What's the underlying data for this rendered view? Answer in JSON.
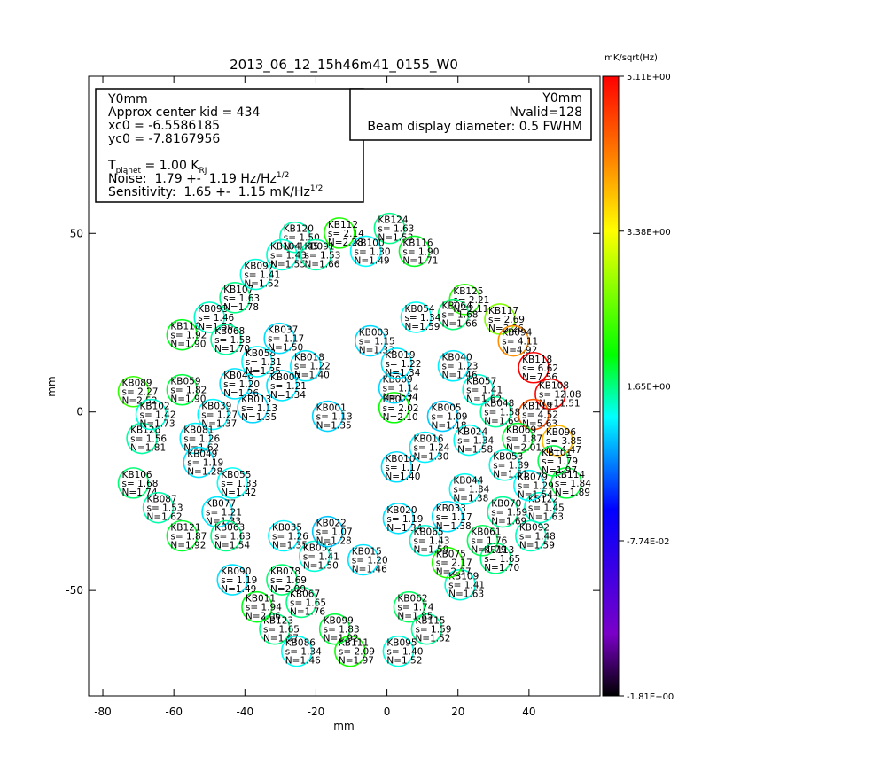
{
  "chart_data": {
    "type": "scatter",
    "title": "2013_06_12_15h46m41_0155_W0",
    "xlabel": "mm",
    "ylabel": "mm",
    "xlim": [
      -84,
      60
    ],
    "ylim": [
      -79.5,
      94
    ],
    "xticks": [
      -80,
      -60,
      -40,
      -20,
      0,
      20,
      40
    ],
    "yticks": [
      -50,
      0,
      50
    ],
    "colorbar_title": "mK/sqrt(Hz)",
    "clim": [
      -1.81,
      5.11
    ],
    "colorbar_ticks": [
      {
        "value": 5.11,
        "label": "5.11E+00"
      },
      {
        "value": 3.38,
        "label": "3.38E+00"
      },
      {
        "value": 1.65,
        "label": "1.65E+00"
      },
      {
        "value": -0.0774,
        "label": "-7.74E-02"
      },
      {
        "value": -1.81,
        "label": "-1.81E+00"
      }
    ],
    "info_left": [
      "Y0mm",
      "Approx center kid = 434",
      "xc0 = -6.5586185",
      "yc0 = -7.8167956"
    ],
    "t_planet": [
      "T",
      "planet",
      " = 1.00 K",
      "RJ"
    ],
    "noise": [
      "Noise:  1.79 +-  1.19 Hz/Hz",
      "1/2"
    ],
    "sensitivity": [
      "Sensitivity:  1.65 +-  1.15 mK/Hz",
      "1/2"
    ],
    "info_right": [
      "Y0mm",
      "Nvalid=128",
      "Beam display diameter: 0.5 FWHM"
    ],
    "labels": [
      "KB120",
      "KB112",
      "KB124",
      "KB116",
      "KB100",
      "KB104",
      "KB091",
      "KB125",
      "KB117",
      "KB094",
      "KB118",
      "KB108",
      "KB119",
      "KB096",
      "KB089",
      "KB059",
      "KB110",
      "KB093",
      "KB107",
      "KB097",
      "KB106",
      "KB126",
      "KB121",
      "KB087",
      "KB123",
      "KB111",
      "KB099",
      "KB115",
      "KB095",
      "KB086",
      "KB109",
      "KB113",
      "KB114",
      "KB101",
      "KB122",
      "KB092",
      "KB075",
      "KB062",
      "KB011",
      "KB067",
      "KB078",
      "KB090",
      "KB010",
      "KB027",
      "KB005",
      "KB048",
      "KB057",
      "KB069",
      "KB003",
      "KB064",
      "KB054",
      "KB016",
      "KB024",
      "KB001",
      "KB009",
      "KB013",
      "KB039",
      "KB102",
      "KB081",
      "KB049",
      "KB055",
      "KB077",
      "KB063",
      "KB035",
      "KB052",
      "KB015",
      "KB022",
      "KB020",
      "KB033",
      "KB065",
      "KB061",
      "KB044",
      "KB079",
      "KB070",
      "KB053",
      "KB040",
      "KB019",
      "KB018",
      "KB007",
      "KB046",
      "KB058",
      "KB068",
      "KB037"
    ],
    "x": [
      -25.9,
      -13.4,
      0.7,
      7.7,
      -6.0,
      -29.6,
      -20.0,
      21.9,
      31.8,
      35.6,
      41.3,
      46.0,
      41.3,
      48.0,
      -71.4,
      -57.7,
      -57.7,
      -50.0,
      -42.8,
      -37.0,
      -71.4,
      -69.0,
      -57.7,
      -64.4,
      -31.6,
      -10.4,
      -14.7,
      11.2,
      3.2,
      -25.4,
      20.6,
      30.6,
      50.5,
      46.8,
      43.0,
      40.5,
      17.0,
      6.2,
      -36.6,
      -24.1,
      -29.6,
      -43.5,
      2.7,
      2.0,
      15.7,
      30.6,
      25.6,
      36.8,
      -4.7,
      18.7,
      8.2,
      10.7,
      23.1,
      -16.7,
      2.0,
      -37.8,
      -49.0,
      -66.4,
      -54.0,
      -53.0,
      -43.5,
      -47.8,
      -45.3,
      -29.1,
      -20.4,
      -6.7,
      -16.7,
      3.2,
      17.0,
      10.7,
      26.9,
      21.9,
      40.0,
      32.6,
      33.1,
      18.7,
      2.7,
      -22.9,
      -29.6,
      -42.8,
      -36.6,
      -45.3,
      -30.3
    ],
    "values": [
      48.9,
      50.1,
      51.4,
      45.0,
      45.0,
      44.0,
      44.0,
      31.5,
      26.0,
      19.9,
      12.4,
      5.0,
      -0.7,
      -8.0,
      5.7,
      6.2,
      21.6,
      26.5,
      32.0,
      38.5,
      -19.9,
      -7.4,
      -34.7,
      -26.8,
      -60.8,
      -67.0,
      -60.8,
      -60.8,
      -67.0,
      -67.0,
      -48.4,
      -41.0,
      -19.9,
      -13.7,
      -26.8,
      -34.7,
      -42.2,
      -54.6,
      -54.6,
      -53.3,
      -47.0,
      -47.0,
      -15.4,
      1.2,
      -1.2,
      0.0,
      6.2,
      -7.4,
      19.9,
      27.3,
      26.5,
      -9.9,
      -7.9,
      -1.2,
      6.7,
      1.2,
      -0.7,
      -0.7,
      -7.4,
      -14.1,
      -19.9,
      -28.0,
      -34.7,
      -34.7,
      -40.4,
      -41.4,
      -33.5,
      -29.8,
      -29.3,
      -36.0,
      -36.0,
      -21.6,
      -20.6,
      -28.0,
      -14.9,
      12.9,
      13.6,
      12.9,
      7.4,
      7.9,
      14.1,
      20.3,
      20.6
    ],
    "s": [
      1.5,
      2.14,
      1.63,
      1.9,
      1.3,
      1.43,
      1.53,
      2.21,
      2.69,
      4.11,
      6.62,
      12.08,
      4.52,
      3.85,
      2.27,
      1.82,
      1.92,
      1.46,
      1.63,
      1.41,
      1.68,
      1.56,
      1.87,
      1.53,
      1.65,
      2.09,
      1.83,
      1.59,
      1.4,
      1.34,
      1.41,
      1.65,
      1.84,
      1.79,
      1.45,
      1.48,
      2.17,
      1.74,
      1.94,
      1.65,
      1.69,
      1.19,
      1.17,
      2.02,
      1.09,
      1.58,
      1.41,
      1.87,
      1.15,
      1.68,
      1.34,
      1.24,
      1.34,
      1.13,
      1.14,
      1.13,
      1.27,
      1.42,
      1.26,
      1.19,
      1.33,
      1.21,
      1.63,
      1.26,
      1.41,
      1.2,
      1.07,
      1.19,
      1.17,
      1.43,
      1.76,
      1.34,
      1.29,
      1.59,
      1.39,
      1.23,
      1.22,
      1.22,
      1.21,
      1.2,
      1.31,
      1.58,
      1.17
    ],
    "s_labels": [
      "s= 1.50",
      "s= 2.14",
      "s= 1.63",
      "s= 1.90",
      "s= 1.30",
      "s= 1.43",
      "s= 1.53",
      "s= 2.21",
      "s= 2.69",
      "s= 4.11",
      "s= 6.62",
      "s= 12.08",
      "s= 4.52",
      "s= 3.85",
      "s= 2.27",
      "s= 1.82",
      "s= 1.92",
      "s= 1.46",
      "s= 1.63",
      "s= 1.41",
      "s= 1.68",
      "s= 1.56",
      "s= 1.87",
      "s= 1.53",
      "s= 1.65",
      "s= 2.09",
      "s= 1.83",
      "s= 1.59",
      "s= 1.40",
      "s= 1.34",
      "s= 1.41",
      "s= 1.65",
      "s= 1.84",
      "s= 1.79",
      "s= 1.45",
      "s= 1.48",
      "s= 2.17",
      "s= 1.74",
      "s= 1.94",
      "s= 1.65",
      "s= 1.69",
      "s= 1.19",
      "s= 1.17",
      "s= 2.02",
      "s= 1.09",
      "s= 1.58",
      "s= 1.41",
      "s= 1.87",
      "s= 1.15",
      "s= 1.68",
      "s= 1.34",
      "s= 1.24",
      "s= 1.34",
      "s= 1.13",
      "s= 1.14",
      "s= 1.13",
      "s= 1.27",
      "s= 1.42",
      "s= 1.26",
      "s= 1.19",
      "s= 1.33",
      "s= 1.21",
      "s= 1.63",
      "s= 1.26",
      "s= 1.41",
      "s= 1.20",
      "s= 1.07",
      "s= 1.19",
      "s= 1.17",
      "s= 1.43",
      "s= 1.76",
      "s= 1.34",
      "s= 1.29",
      "s= 1.59",
      "s= 1.39",
      "s= 1.23",
      "s= 1.22",
      "s= 1.22",
      "s= 1.21",
      "s= 1.20",
      "s= 1.31",
      "s= 1.58",
      "s= 1.17"
    ],
    "n_labels": [
      "N=1.45",
      "N=2.28",
      "N=1.53",
      "N=1.71",
      "N=1.49",
      "N=1.55",
      "N=1.66",
      "N=2.11",
      "N=3.26",
      "N=4.92",
      "N=7.56",
      "N=11.51",
      "N=5.63",
      "N=4.47",
      "N=2.52",
      "N=1.90",
      "N=1.90",
      "N=1.50",
      "N=1.78",
      "N=1.52",
      "N=1.74",
      "N=1.81",
      "N=1.92",
      "N=1.62",
      "N=1.67",
      "N=1.97",
      "N=1.92",
      "N=1.52",
      "N=1.52",
      "N=1.46",
      "N=1.63",
      "N=1.70",
      "N=1.89",
      "N=1.97",
      "N=1.63",
      "N=1.59",
      "N=2.37",
      "N=1.85",
      "N=2.06",
      "N=1.76",
      "N=2.09",
      "N=1.49",
      "N=1.40",
      "N=2.10",
      "N=1.18",
      "N=1.69",
      "N=1.62",
      "N=2.01",
      "N=1.33",
      "N=1.66",
      "N=1.59",
      "N=1.30",
      "N=1.58",
      "N=1.35",
      "N=1.34",
      "N=1.35",
      "N=1.37",
      "N=1.73",
      "N=1.62",
      "N=1.28",
      "N=1.42",
      "N=1.33",
      "N=1.54",
      "N=1.35",
      "N=1.50",
      "N=1.46",
      "N=1.28",
      "N=1.34",
      "N=1.38",
      "N=1.59",
      "N=1.79",
      "N=1.38",
      "N=1.54",
      "N=1.69",
      "N=1.51",
      "N=1.46",
      "N=1.34",
      "N=1.40",
      "N=1.34",
      "N=1.26",
      "N=1.35",
      "N=1.70",
      "N=1.50"
    ]
  }
}
